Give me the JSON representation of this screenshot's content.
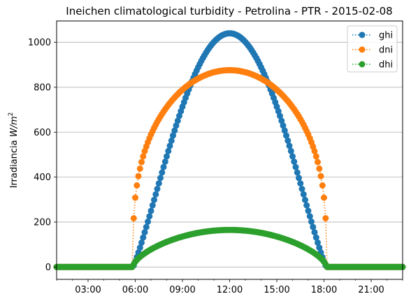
{
  "chart_data": {
    "type": "line",
    "title": "Ineichen climatological turbidity - Petrolina - PTR - 2015-02-08",
    "xlabel": "",
    "ylabel": "Irradiancia W/m²",
    "ylabel_parts": {
      "text": "Irradiancia ",
      "unit": "W/m",
      "sup": "2"
    },
    "x_unit": "hour of day",
    "xlim": [
      1,
      23
    ],
    "ylim": [
      -55,
      1095
    ],
    "x_ticks": [
      {
        "value": 3,
        "label": "03:00"
      },
      {
        "value": 6,
        "label": "06:00"
      },
      {
        "value": 9,
        "label": "09:00"
      },
      {
        "value": 12,
        "label": "12:00"
      },
      {
        "value": 15,
        "label": "15:00"
      },
      {
        "value": 18,
        "label": "18:00"
      },
      {
        "value": 21,
        "label": "21:00"
      }
    ],
    "y_ticks": [
      0,
      200,
      400,
      600,
      800,
      1000
    ],
    "grid": "horizontal",
    "legend_position": "top-right",
    "sunrise_hour": 5.85,
    "sunset_hour": 18.15,
    "sample_step_hours": 0.1,
    "series": [
      {
        "name": "ghi",
        "color": "#1f77b4",
        "peak": 1040,
        "peak_hour": 12.0
      },
      {
        "name": "dni",
        "color": "#ff7f0e",
        "peak": 876,
        "peak_hour": 12.0
      },
      {
        "name": "dhi",
        "color": "#2ca02c",
        "peak": 165,
        "peak_hour": 12.0
      }
    ]
  }
}
